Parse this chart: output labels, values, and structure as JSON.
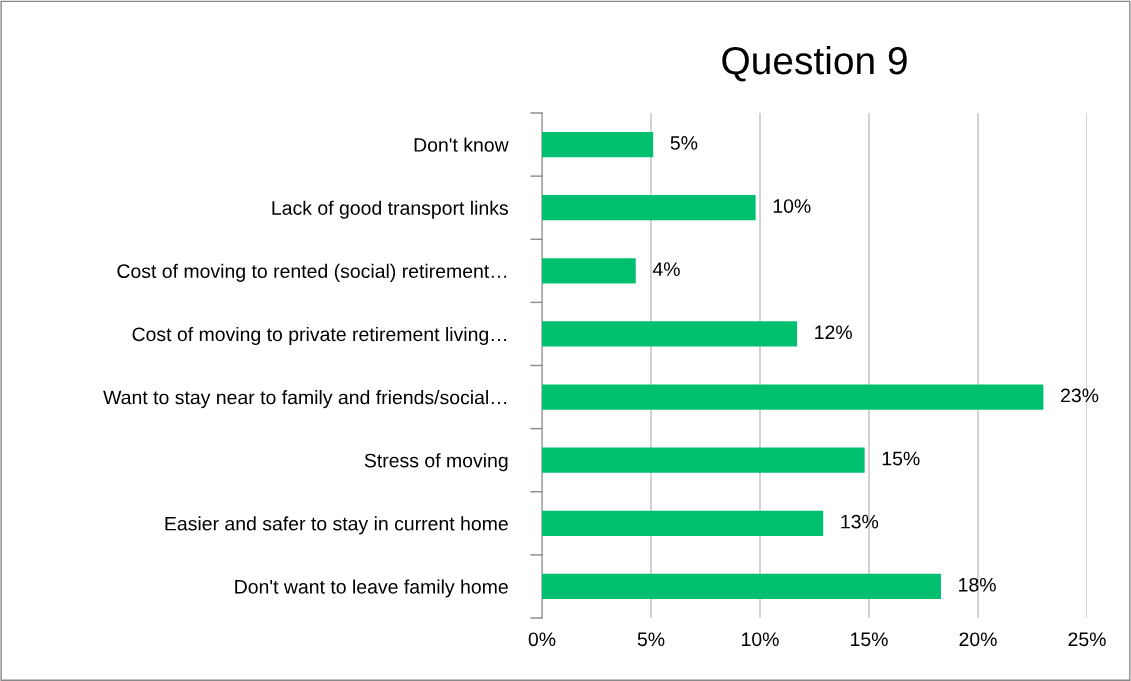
{
  "chart_data": {
    "type": "bar",
    "orientation": "horizontal",
    "title": "Question 9",
    "categories": [
      "Don't know",
      "Lack of good transport links",
      "Cost of moving to rented (social) retirement…",
      "Cost of moving to private retirement living…",
      "Want to stay near to family and friends/social…",
      "Stress of moving",
      "Easier and safer to stay in current home",
      "Don't want to leave family home"
    ],
    "values": [
      5.1,
      9.8,
      4.3,
      11.7,
      23.0,
      14.8,
      12.9,
      18.3
    ],
    "value_labels": [
      "5%",
      "10%",
      "4%",
      "12%",
      "23%",
      "15%",
      "13%",
      "18%"
    ],
    "color": "#00bf6f",
    "xlim": [
      0,
      25
    ],
    "xticks": [
      {
        "value": 0,
        "label": "0%"
      },
      {
        "value": 5,
        "label": "5%"
      },
      {
        "value": 10,
        "label": "10%"
      },
      {
        "value": 15,
        "label": "15%"
      },
      {
        "value": 20,
        "label": "20%"
      },
      {
        "value": 25,
        "label": "25%"
      }
    ],
    "grid": "x",
    "legend": false
  }
}
